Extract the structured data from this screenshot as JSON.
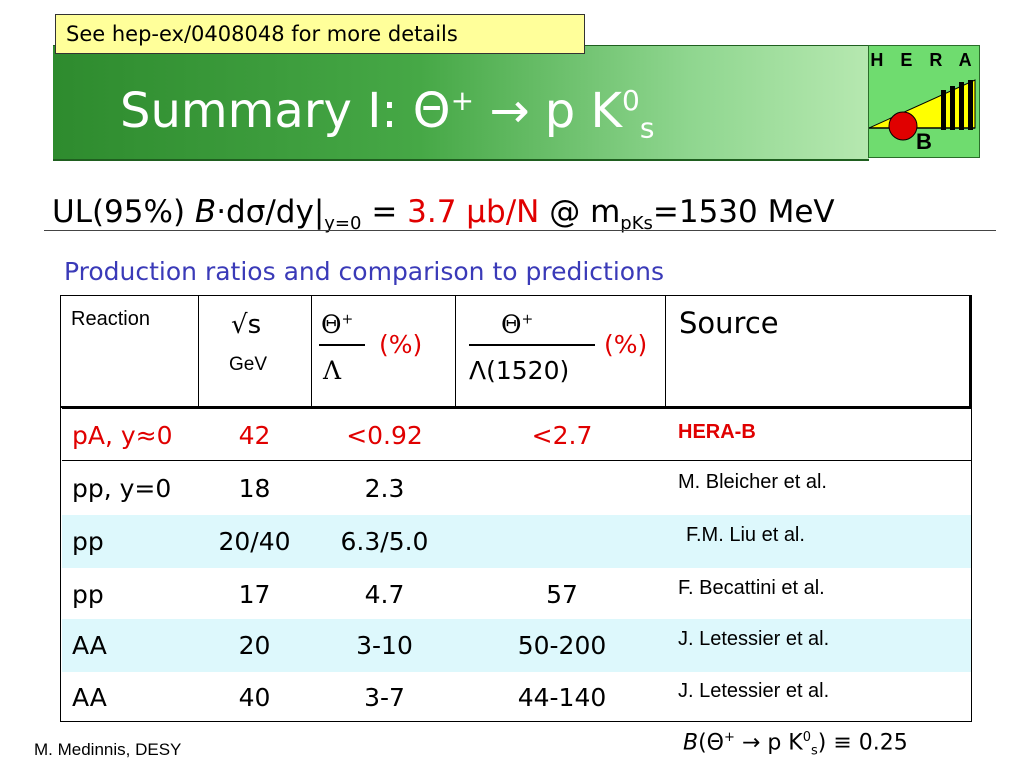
{
  "header": {
    "note": "See hep-ex/0408048 for more details",
    "title_main": "Summary I: Θ",
    "title_sup": "+",
    "title_rest": " → p K",
    "title_k_sup": "0",
    "title_k_sub": "s",
    "logo_top": "H E R A",
    "logo_bottom": "B"
  },
  "formula": {
    "part1": "UL(95%) ",
    "italic_b": "B",
    "part2": "·dσ/dy|",
    "sub_y": "y=0",
    "equals": " = ",
    "value": "3.7 μb/N",
    "at": " @ m",
    "sub_m": "pKs",
    "mass": "=1530 MeV"
  },
  "subtitle": "Production ratios and comparison to predictions",
  "table": {
    "headers": {
      "reaction": "Reaction",
      "sqrt_s": "√s",
      "gev": "GeV",
      "theta_num": "Θ",
      "theta_sup": "+",
      "lambda_den": "Λ",
      "pct1": "(%)",
      "theta_num2": "Θ",
      "theta_sup2": "+",
      "lambda1520": "Λ(1520)",
      "pct2": "(%)",
      "source": "Source"
    },
    "rows": [
      {
        "reaction": "pA, y≈0",
        "sqrt_s": "42",
        "ratio_lambda": "<0.92",
        "ratio_lambda1520": "<2.7",
        "source": "HERA-B"
      },
      {
        "reaction": "pp, y=0",
        "sqrt_s": "18",
        "ratio_lambda": "2.3",
        "ratio_lambda1520": "",
        "source": "M. Bleicher et al."
      },
      {
        "reaction": "pp",
        "sqrt_s": "20/40",
        "ratio_lambda": "6.3/5.0",
        "ratio_lambda1520": "",
        "source": "F.M. Liu et al."
      },
      {
        "reaction": "pp",
        "sqrt_s": "17",
        "ratio_lambda": "4.7",
        "ratio_lambda1520": "57",
        "source": "F. Becattini et al."
      },
      {
        "reaction": "AA",
        "sqrt_s": "20",
        "ratio_lambda": "3-10",
        "ratio_lambda1520": "50-200",
        "source": "J. Letessier et al."
      },
      {
        "reaction": "AA",
        "sqrt_s": "40",
        "ratio_lambda": "3-7",
        "ratio_lambda1520": "44-140",
        "source": "J. Letessier et al."
      }
    ]
  },
  "footer": {
    "author": "M. Medinnis, DESY",
    "br_b": "B",
    "br_open": "(Θ",
    "br_sup": "+",
    "br_mid": " → p K",
    "br_k_sup": "0",
    "br_k_sub": "s",
    "br_close": ") ≡ 0.25"
  },
  "colors": {
    "banner_green": "#46a846",
    "highlight_red": "#e00000",
    "subtitle_blue": "#3a3ab8",
    "row_alt": "#ddf8fc",
    "note_yellow": "#ffff9a"
  }
}
